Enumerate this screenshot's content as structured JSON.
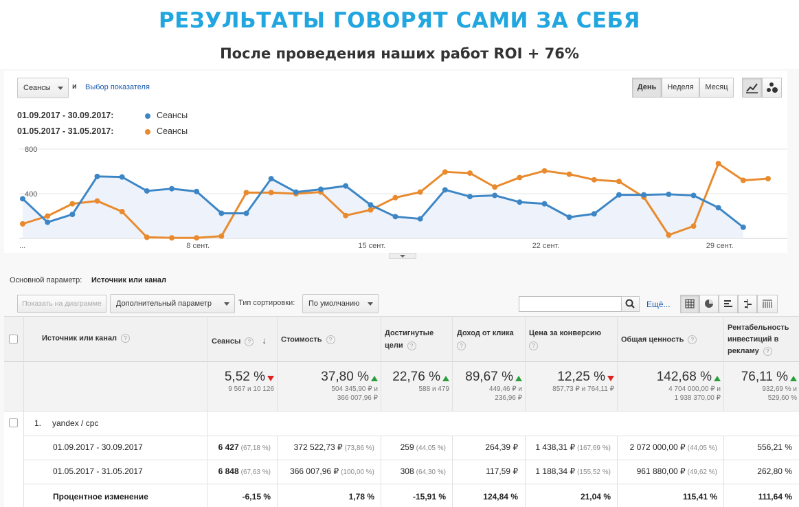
{
  "header": {
    "title": "РЕЗУЛЬТАТЫ ГОВОРЯТ САМИ ЗА СЕБЯ",
    "subtitle": "После проведения наших работ ROI + 76%"
  },
  "controls": {
    "metric_select": "Сеансы",
    "and_label": "и",
    "choose_metric_link": "Выбор показателя",
    "period_buttons": [
      "День",
      "Неделя",
      "Месяц"
    ]
  },
  "legend": [
    {
      "dates": "01.09.2017 - 30.09.2017:",
      "name": "Сеансы",
      "color": "#3d86c6"
    },
    {
      "dates": "01.05.2017 - 31.05.2017:",
      "name": "Сеансы",
      "color": "#e88a2d"
    }
  ],
  "chart_data": {
    "type": "line",
    "title": "",
    "xlabel": "",
    "ylabel": "",
    "ylim": [
      0,
      800
    ],
    "y_ticks": [
      "800",
      "400"
    ],
    "x_tick_labels": [
      "...",
      "8 сент.",
      "15 сент.",
      "22 сент.",
      "29 сент."
    ],
    "x_tick_days": [
      1,
      8,
      15,
      22,
      29
    ],
    "days": [
      1,
      2,
      3,
      4,
      5,
      6,
      7,
      8,
      9,
      10,
      11,
      12,
      13,
      14,
      15,
      16,
      17,
      18,
      19,
      20,
      21,
      22,
      23,
      24,
      25,
      26,
      27,
      28,
      29,
      30,
      31
    ],
    "series": [
      {
        "name": "Сеансы (01.09.2017 - 30.09.2017)",
        "color": "#3d86c6",
        "values": [
          355,
          145,
          215,
          555,
          550,
          425,
          445,
          420,
          225,
          225,
          535,
          415,
          440,
          470,
          300,
          195,
          175,
          435,
          375,
          385,
          325,
          310,
          190,
          220,
          390,
          390,
          395,
          385,
          275,
          100
        ]
      },
      {
        "name": "Сеансы (01.05.2017 - 31.05.2017)",
        "color": "#e88a2d",
        "values": [
          130,
          200,
          310,
          335,
          240,
          10,
          5,
          5,
          20,
          410,
          410,
          400,
          415,
          205,
          255,
          365,
          415,
          595,
          585,
          460,
          545,
          605,
          575,
          525,
          510,
          370,
          30,
          110,
          670,
          520,
          535
        ]
      }
    ]
  },
  "dimension": {
    "label": "Основной параметр:",
    "value": "Источник или канал"
  },
  "toolbar": {
    "plot_button": "Показать на диаграмме",
    "secondary_param": "Дополнительный параметр",
    "sort_label": "Тип сортировки:",
    "sort_value": "По умолчанию",
    "more_link": "Ещё..."
  },
  "table": {
    "headers": {
      "source": "Источник или канал",
      "sessions": "Сеансы",
      "cost": "Стоимость",
      "goals": "Достигнутые цели",
      "rpc": "Доход от клика",
      "cpa": "Цена за конверсию",
      "value": "Общая ценность",
      "roas": "Рентабельность инвестиций в рекламу"
    },
    "summary": {
      "sessions": {
        "pct": "5,52 %",
        "dir": "down",
        "sub1": "9 567 и 10 126",
        "sub2": ""
      },
      "cost": {
        "pct": "37,80 %",
        "dir": "up",
        "sub1": "504 345,90 ₽ и",
        "sub2": "366 007,96 ₽"
      },
      "goals": {
        "pct": "22,76 %",
        "dir": "up",
        "sub1": "588 и 479",
        "sub2": ""
      },
      "rpc": {
        "pct": "89,67 %",
        "dir": "up",
        "sub1": "449,46 ₽ и",
        "sub2": "236,96 ₽"
      },
      "cpa": {
        "pct": "12,25 %",
        "dir": "down",
        "sub1": "857,73 ₽ и 764,11 ₽",
        "sub2": ""
      },
      "value": {
        "pct": "142,68 %",
        "dir": "up",
        "sub1": "4 704 000,00 ₽ и",
        "sub2": "1 938 370,00 ₽"
      },
      "roas": {
        "pct": "76,11 %",
        "dir": "up",
        "sub1": "932,69 % и",
        "sub2": "529,60 %"
      }
    },
    "row": {
      "index": "1.",
      "source": "yandex / cpc"
    },
    "periods": [
      {
        "label": "01.09.2017 - 30.09.2017",
        "sessions": "6 427",
        "sessions_pct": "(67,18 %)",
        "cost": "372 522,73 ₽",
        "cost_pct": "(73,86 %)",
        "goals": "259",
        "goals_pct": "(44,05 %)",
        "rpc": "264,39 ₽",
        "cpa": "1 438,31 ₽",
        "cpa_pct": "(167,69 %)",
        "value": "2 072 000,00 ₽",
        "value_pct": "(44,05 %)",
        "roas": "556,21 %"
      },
      {
        "label": "01.05.2017 - 31.05.2017",
        "sessions": "6 848",
        "sessions_pct": "(67,63 %)",
        "cost": "366 007,96 ₽",
        "cost_pct": "(100,00 %)",
        "goals": "308",
        "goals_pct": "(64,30 %)",
        "rpc": "117,59 ₽",
        "cpa": "1 188,34 ₽",
        "cpa_pct": "(155,52 %)",
        "value": "961 880,00 ₽",
        "value_pct": "(49,62 %)",
        "roas": "262,80 %"
      }
    ],
    "change": {
      "label": "Процентное изменение",
      "sessions": "-6,15 %",
      "cost": "1,78 %",
      "goals": "-15,91 %",
      "rpc": "124,84 %",
      "cpa": "21,04 %",
      "value": "115,41 %",
      "roas": "111,64 %"
    }
  }
}
